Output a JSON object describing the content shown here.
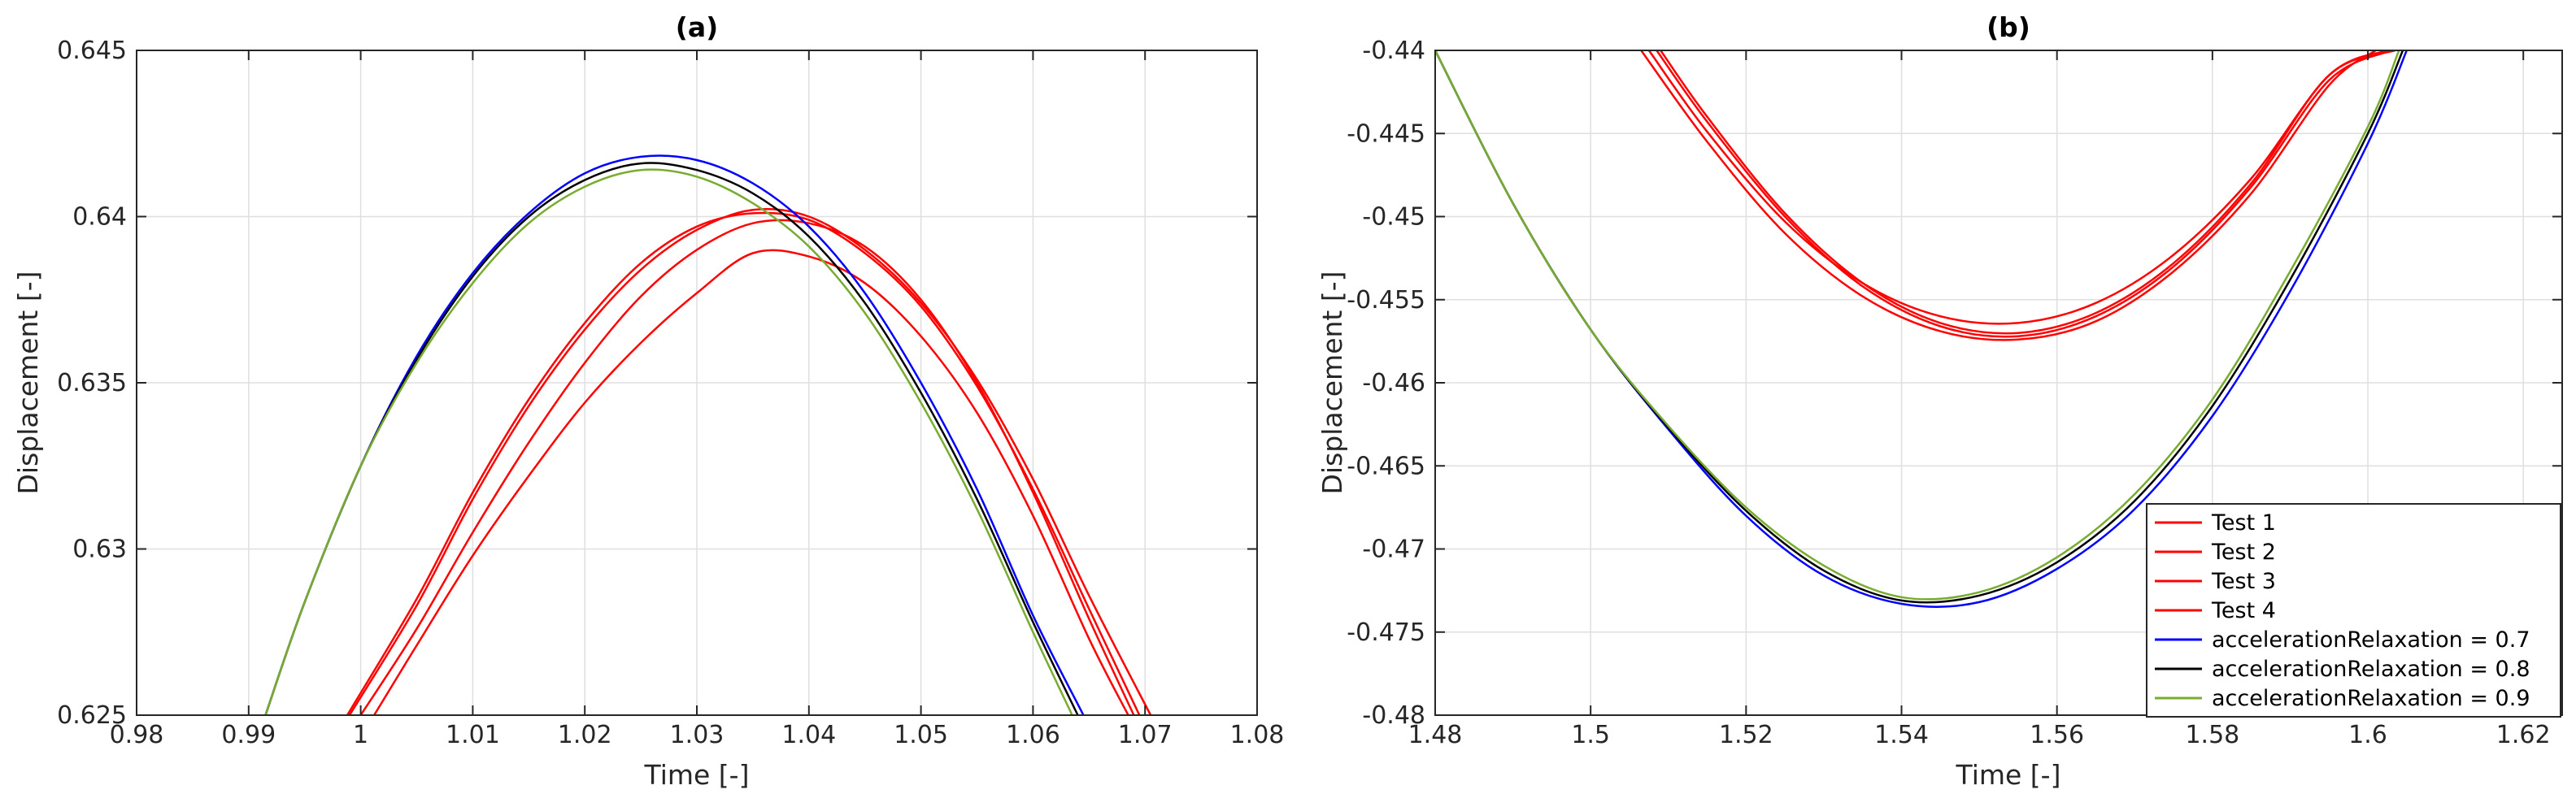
{
  "chart_data": [
    {
      "type": "line",
      "title": "(a)",
      "xlabel": "Time [-]",
      "ylabel": "Displacement [-]",
      "xlim": [
        0.98,
        1.08
      ],
      "ylim": [
        0.625,
        0.645
      ],
      "grid": true,
      "xticks": [
        "0.98",
        "0.99",
        "1",
        "1.01",
        "1.02",
        "1.03",
        "1.04",
        "1.05",
        "1.06",
        "1.07",
        "1.08"
      ],
      "yticks": [
        "0.625",
        "0.63",
        "0.635",
        "0.64",
        "0.645"
      ],
      "xtick_values": [
        0.98,
        0.99,
        1.0,
        1.01,
        1.02,
        1.03,
        1.04,
        1.05,
        1.06,
        1.07,
        1.08
      ],
      "ytick_values": [
        0.625,
        0.63,
        0.635,
        0.64,
        0.645
      ],
      "series": [
        {
          "name": "Test 1",
          "color": "#ff0000",
          "x": [
            0.9988,
            1.005,
            1.01,
            1.015,
            1.02,
            1.025,
            1.03,
            1.035,
            1.04,
            1.045,
            1.05,
            1.055,
            1.06,
            1.065,
            1.0695
          ],
          "y": [
            0.625,
            0.6285,
            0.6317,
            0.6345,
            0.6368,
            0.6386,
            0.6397,
            0.6401,
            0.6399,
            0.6389,
            0.6373,
            0.6349,
            0.6318,
            0.6282,
            0.625
          ]
        },
        {
          "name": "Test 2",
          "color": "#ff0000",
          "x": [
            0.999,
            1.005,
            1.01,
            1.015,
            1.02,
            1.025,
            1.03,
            1.035,
            1.04,
            1.045,
            1.05,
            1.055,
            1.06,
            1.065,
            1.0705
          ],
          "y": [
            0.625,
            0.6283,
            0.6315,
            0.6343,
            0.6366,
            0.6384,
            0.6396,
            0.6402,
            0.64,
            0.639,
            0.6374,
            0.6351,
            0.6321,
            0.6286,
            0.625
          ]
        },
        {
          "name": "Test 3",
          "color": "#ff0000",
          "x": [
            1.0,
            1.005,
            1.01,
            1.015,
            1.02,
            1.025,
            1.03,
            1.035,
            1.04,
            1.045,
            1.05,
            1.055,
            1.06,
            1.065,
            1.069
          ],
          "y": [
            0.625,
            0.6276,
            0.6305,
            0.6332,
            0.6356,
            0.6376,
            0.639,
            0.6398,
            0.6398,
            0.6391,
            0.6375,
            0.635,
            0.6317,
            0.6279,
            0.625
          ]
        },
        {
          "name": "Test 4",
          "color": "#ff0000",
          "x": [
            1.0012,
            1.005,
            1.01,
            1.015,
            1.02,
            1.025,
            1.03,
            1.035,
            1.04,
            1.045,
            1.05,
            1.055,
            1.06,
            1.065,
            1.0685
          ],
          "y": [
            0.625,
            0.6271,
            0.6298,
            0.6322,
            0.6344,
            0.6362,
            0.6377,
            0.6389,
            0.6388,
            0.638,
            0.6364,
            0.6341,
            0.631,
            0.6273,
            0.625
          ]
        },
        {
          "name": "accelerationRelaxation = 0.7",
          "color": "#0000ff",
          "x": [
            0.9915,
            0.995,
            1.0,
            1.005,
            1.01,
            1.015,
            1.02,
            1.025,
            1.03,
            1.035,
            1.04,
            1.045,
            1.05,
            1.055,
            1.06,
            1.0645
          ],
          "y": [
            0.625,
            0.6284,
            0.6325,
            0.6358,
            0.6383,
            0.6401,
            0.6413,
            0.6418,
            0.6417,
            0.641,
            0.6397,
            0.6377,
            0.635,
            0.6318,
            0.628,
            0.625
          ]
        },
        {
          "name": "accelerationRelaxation = 0.8",
          "color": "#000000",
          "x": [
            0.9915,
            0.995,
            1.0,
            1.005,
            1.01,
            1.015,
            1.02,
            1.025,
            1.03,
            1.035,
            1.04,
            1.045,
            1.05,
            1.055,
            1.06,
            1.064
          ],
          "y": [
            0.625,
            0.6284,
            0.6325,
            0.6357,
            0.6382,
            0.64,
            0.6411,
            0.6416,
            0.6414,
            0.6407,
            0.6394,
            0.6374,
            0.6347,
            0.6315,
            0.6278,
            0.625
          ]
        },
        {
          "name": "accelerationRelaxation = 0.9",
          "color": "#77ac30",
          "x": [
            0.9915,
            0.995,
            1.0,
            1.005,
            1.01,
            1.015,
            1.02,
            1.025,
            1.03,
            1.035,
            1.04,
            1.045,
            1.05,
            1.055,
            1.06,
            1.0635
          ],
          "y": [
            0.625,
            0.6284,
            0.6325,
            0.6356,
            0.638,
            0.6398,
            0.6409,
            0.6414,
            0.6412,
            0.6404,
            0.6391,
            0.6371,
            0.6344,
            0.6312,
            0.6275,
            0.625
          ]
        }
      ]
    },
    {
      "type": "line",
      "title": "(b)",
      "xlabel": "Time [-]",
      "ylabel": "Displacement [-]",
      "xlim": [
        1.48,
        1.625
      ],
      "ylim": [
        -0.48,
        -0.44
      ],
      "grid": true,
      "legend": "bottom-right",
      "xticks": [
        "1.48",
        "1.5",
        "1.52",
        "1.54",
        "1.56",
        "1.58",
        "1.6",
        "1.62"
      ],
      "yticks": [
        "-0.44",
        "-0.445",
        "-0.45",
        "-0.455",
        "-0.46",
        "-0.465",
        "-0.47",
        "-0.475",
        "-0.48"
      ],
      "xtick_values": [
        1.48,
        1.5,
        1.52,
        1.54,
        1.56,
        1.58,
        1.6,
        1.62
      ],
      "ytick_values": [
        -0.44,
        -0.445,
        -0.45,
        -0.455,
        -0.46,
        -0.465,
        -0.47,
        -0.475,
        -0.48
      ],
      "series": [
        {
          "name": "Test 1",
          "color": "#ff0000",
          "x": [
            1.5075,
            1.515,
            1.525,
            1.535,
            1.545,
            1.555,
            1.565,
            1.575,
            1.585,
            1.595,
            1.6025
          ],
          "y": [
            -0.44,
            -0.4449,
            -0.4503,
            -0.454,
            -0.456,
            -0.4564,
            -0.4552,
            -0.4523,
            -0.4477,
            -0.4415,
            -0.44
          ]
        },
        {
          "name": "Test 2",
          "color": "#ff0000",
          "x": [
            1.5085,
            1.515,
            1.525,
            1.535,
            1.545,
            1.555,
            1.565,
            1.575,
            1.585,
            1.595,
            1.603
          ],
          "y": [
            -0.44,
            -0.4443,
            -0.45,
            -0.4542,
            -0.4566,
            -0.4572,
            -0.456,
            -0.453,
            -0.4482,
            -0.4418,
            -0.44
          ]
        },
        {
          "name": "Test 3",
          "color": "#ff0000",
          "x": [
            1.5065,
            1.515,
            1.525,
            1.535,
            1.545,
            1.555,
            1.565,
            1.575,
            1.585,
            1.595,
            1.601
          ],
          "y": [
            -0.44,
            -0.4455,
            -0.451,
            -0.4548,
            -0.4569,
            -0.4574,
            -0.4563,
            -0.4533,
            -0.4486,
            -0.4421,
            -0.44
          ]
        },
        {
          "name": "Test 4",
          "color": "#ff0000",
          "x": [
            1.509,
            1.515,
            1.525,
            1.535,
            1.545,
            1.555,
            1.565,
            1.575,
            1.585,
            1.595,
            1.6035
          ],
          "y": [
            -0.44,
            -0.444,
            -0.4498,
            -0.454,
            -0.4564,
            -0.457,
            -0.4558,
            -0.4528,
            -0.448,
            -0.4415,
            -0.44
          ]
        },
        {
          "name": "accelerationRelaxation = 0.7",
          "color": "#0000ff",
          "x": [
            1.48,
            1.49,
            1.5,
            1.51,
            1.52,
            1.53,
            1.54,
            1.55,
            1.56,
            1.57,
            1.58,
            1.59,
            1.6,
            1.605
          ],
          "y": [
            -0.44,
            -0.4492,
            -0.4568,
            -0.4628,
            -0.468,
            -0.4716,
            -0.4733,
            -0.4732,
            -0.4712,
            -0.4676,
            -0.462,
            -0.4545,
            -0.4456,
            -0.44
          ]
        },
        {
          "name": "accelerationRelaxation = 0.8",
          "color": "#000000",
          "x": [
            1.48,
            1.49,
            1.5,
            1.51,
            1.52,
            1.53,
            1.54,
            1.55,
            1.56,
            1.57,
            1.58,
            1.59,
            1.6,
            1.6045
          ],
          "y": [
            -0.44,
            -0.4492,
            -0.4568,
            -0.4627,
            -0.4677,
            -0.4713,
            -0.4731,
            -0.4728,
            -0.4708,
            -0.4671,
            -0.4614,
            -0.4538,
            -0.445,
            -0.44
          ]
        },
        {
          "name": "accelerationRelaxation = 0.9",
          "color": "#77ac30",
          "x": [
            1.48,
            1.49,
            1.5,
            1.51,
            1.52,
            1.53,
            1.54,
            1.55,
            1.56,
            1.57,
            1.58,
            1.59,
            1.6,
            1.604
          ],
          "y": [
            -0.44,
            -0.4492,
            -0.4568,
            -0.4626,
            -0.4675,
            -0.471,
            -0.4729,
            -0.4726,
            -0.4705,
            -0.4667,
            -0.461,
            -0.4533,
            -0.4446,
            -0.44
          ]
        }
      ]
    }
  ]
}
